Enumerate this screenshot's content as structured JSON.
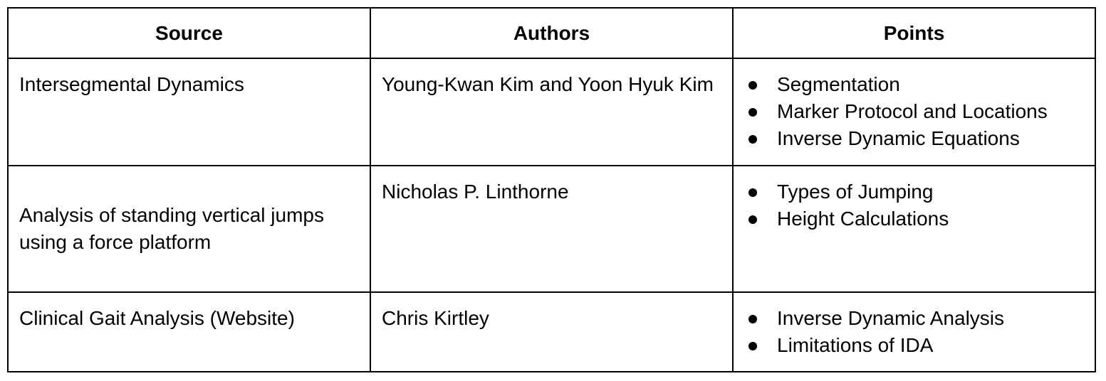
{
  "table": {
    "headers": [
      "Source",
      "Authors",
      "Points"
    ],
    "rows": [
      {
        "source": "Intersegmental Dynamics",
        "authors": "Young-Kwan Kim and Yoon Hyuk Kim",
        "points": [
          "Segmentation",
          "Marker Protocol and Locations",
          "Inverse Dynamic Equations"
        ]
      },
      {
        "source": "Analysis of standing vertical jumps using a force platform",
        "authors": "Nicholas P. Linthorne",
        "points": [
          "Types of Jumping",
          "Height Calculations"
        ]
      },
      {
        "source": "Clinical Gait Analysis (Website)",
        "authors": "Chris Kirtley",
        "points": [
          "Inverse Dynamic Analysis",
          "Limitations of IDA"
        ]
      }
    ]
  }
}
